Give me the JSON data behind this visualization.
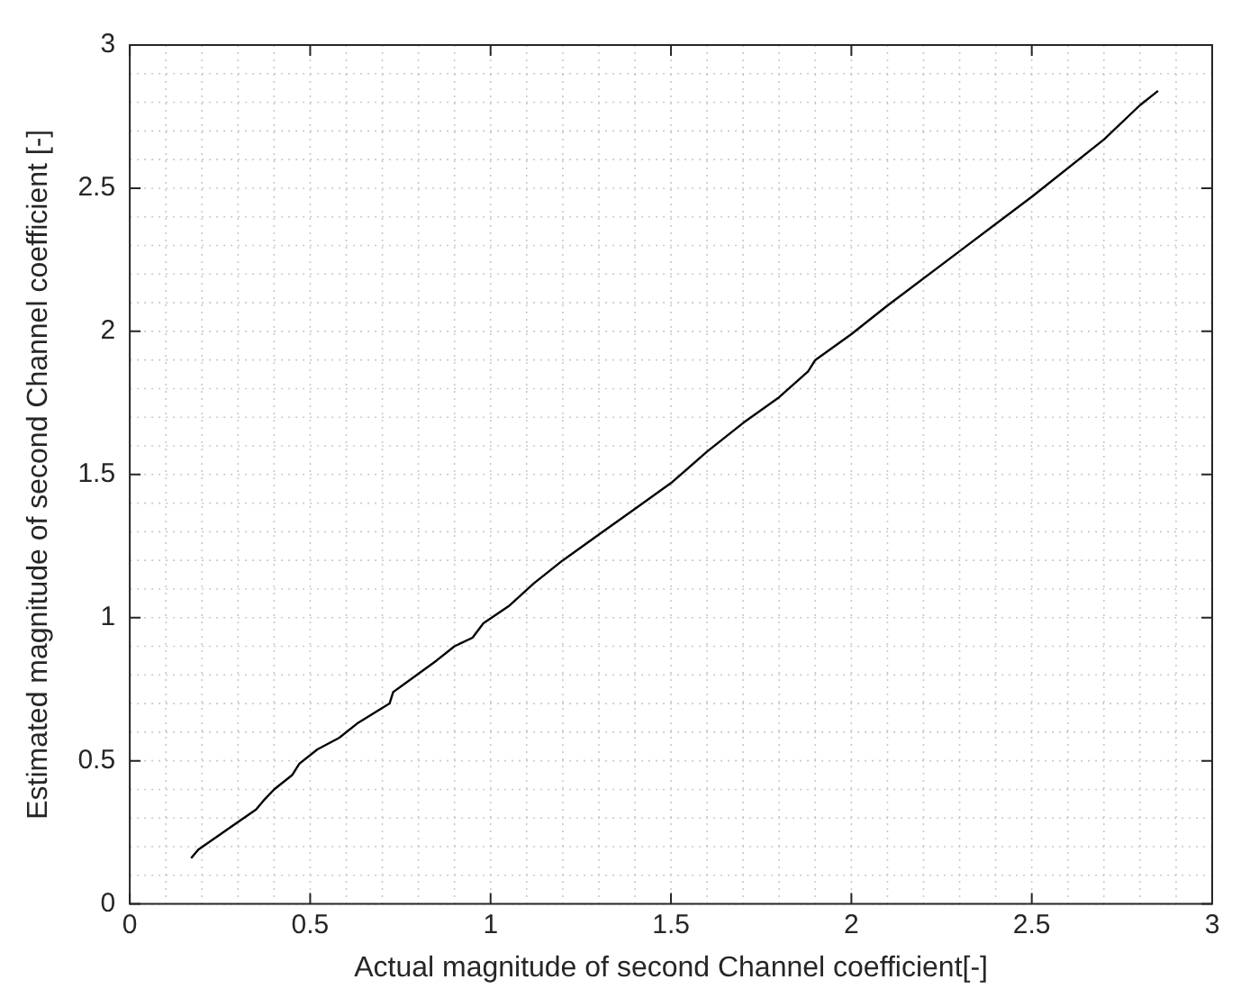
{
  "chart_data": {
    "type": "line",
    "xlabel": "Actual magnitude of second Channel coefficient[-]",
    "ylabel": "Estimated magnitude of second Channel coefficient [-]",
    "series": [
      {
        "color": "#000000",
        "x": [
          0.17,
          0.19,
          0.27,
          0.35,
          0.37,
          0.4,
          0.45,
          0.47,
          0.52,
          0.58,
          0.63,
          0.72,
          0.73,
          0.85,
          0.9,
          0.95,
          0.98,
          1.05,
          1.12,
          1.2,
          1.3,
          1.4,
          1.5,
          1.6,
          1.7,
          1.8,
          1.88,
          1.9,
          2.0,
          2.1,
          2.3,
          2.5,
          2.7,
          2.8,
          2.85
        ],
        "values": [
          0.16,
          0.19,
          0.26,
          0.33,
          0.36,
          0.4,
          0.45,
          0.49,
          0.54,
          0.58,
          0.63,
          0.7,
          0.74,
          0.85,
          0.9,
          0.93,
          0.98,
          1.04,
          1.12,
          1.2,
          1.29,
          1.38,
          1.47,
          1.58,
          1.68,
          1.77,
          1.86,
          1.9,
          1.99,
          2.09,
          2.28,
          2.47,
          2.67,
          2.79,
          2.84
        ]
      }
    ],
    "xlim": [
      0,
      3
    ],
    "ylim": [
      0,
      3
    ],
    "xticks": [
      0,
      0.5,
      1,
      1.5,
      2,
      2.5,
      3
    ],
    "yticks": [
      0,
      0.5,
      1,
      1.5,
      2,
      2.5,
      3
    ],
    "grid": true,
    "legend": false,
    "marker": "none",
    "line_style": "solid"
  }
}
